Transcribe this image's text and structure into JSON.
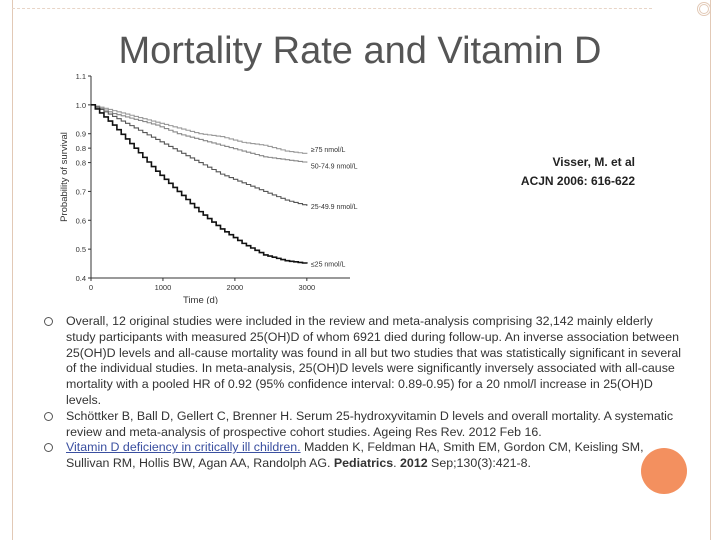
{
  "slide": {
    "title": "Mortality Rate and Vitamin D",
    "citation_line1": "Visser, M. et al",
    "citation_line2": "ACJN 2006: 616-622"
  },
  "chart_data": {
    "type": "line",
    "xlabel": "Time (d)",
    "ylabel": "Probability of survival",
    "xlim": [
      0,
      3600
    ],
    "ylim": [
      0.4,
      1.1
    ],
    "x_ticks": [
      "0",
      "1000",
      "2000",
      "3000"
    ],
    "y_ticks": [
      "0.4",
      "0.5",
      "0.6",
      "0.7",
      "0.8",
      "0.8",
      "0.9",
      "1.0",
      "1.1"
    ],
    "y_tick_values": [
      0.4,
      0.5,
      0.6,
      0.7,
      0.8,
      0.85,
      0.9,
      1.0,
      1.1
    ],
    "series": [
      {
        "name": "≥75 nmol/L",
        "x": [
          0,
          300,
          600,
          900,
          1200,
          1500,
          1800,
          2100,
          2400,
          2700,
          3000
        ],
        "y": [
          1.0,
          0.98,
          0.96,
          0.94,
          0.92,
          0.9,
          0.89,
          0.87,
          0.86,
          0.84,
          0.83
        ],
        "color": "#999999"
      },
      {
        "name": "50-74.9 nmol/L",
        "x": [
          0,
          300,
          600,
          900,
          1200,
          1500,
          1800,
          2100,
          2400,
          2700,
          3000
        ],
        "y": [
          1.0,
          0.97,
          0.95,
          0.93,
          0.9,
          0.88,
          0.86,
          0.84,
          0.82,
          0.81,
          0.8
        ],
        "color": "#888888"
      },
      {
        "name": "25-49.9 nmol/L",
        "x": [
          0,
          300,
          600,
          900,
          1200,
          1500,
          1800,
          2100,
          2400,
          2700,
          3000
        ],
        "y": [
          1.0,
          0.96,
          0.92,
          0.88,
          0.84,
          0.8,
          0.76,
          0.73,
          0.7,
          0.67,
          0.65
        ],
        "color": "#555555"
      },
      {
        "name": "≤25 nmol/L",
        "x": [
          0,
          300,
          600,
          900,
          1200,
          1500,
          1800,
          2100,
          2400,
          2700,
          3000
        ],
        "y": [
          1.0,
          0.93,
          0.85,
          0.77,
          0.7,
          0.63,
          0.57,
          0.52,
          0.48,
          0.46,
          0.45
        ],
        "color": "#111111"
      }
    ],
    "grid": false,
    "legend": "inline-right"
  },
  "bullets": [
    {
      "text": "Overall, 12 original studies were included in the review and meta-analysis comprising 32,142 mainly elderly study participants with measured 25(OH)D of whom 6921 died during follow-up. An inverse association between 25(OH)D levels and all-cause mortality was found in all but two studies that was statistically significant in several of the individual studies. In meta-analysis, 25(OH)D levels were significantly inversely associated with all-cause mortality with a pooled HR of 0.92 (95% confidence interval: 0.89-0.95) for a 20 nmol/l increase in 25(OH)D levels."
    },
    {
      "text": "Schöttker B, Ball D, Gellert C, Brenner H. Serum 25-hydroxyvitamin D levels and overall mortality. A systematic review and meta-analysis of prospective cohort studies. Ageing Res Rev. 2012 Feb 16."
    },
    {
      "link": "Vitamin D deficiency in critically ill children.",
      "authors": " Madden K, Feldman HA, Smith EM, Gordon CM, Keisling SM, Sullivan RM, Hollis BW, Agan AA, Randolph AG. ",
      "journal": "Pediatrics",
      "sep1": ". ",
      "year": "2012",
      "rest": " Sep;130(3):421-8."
    }
  ]
}
